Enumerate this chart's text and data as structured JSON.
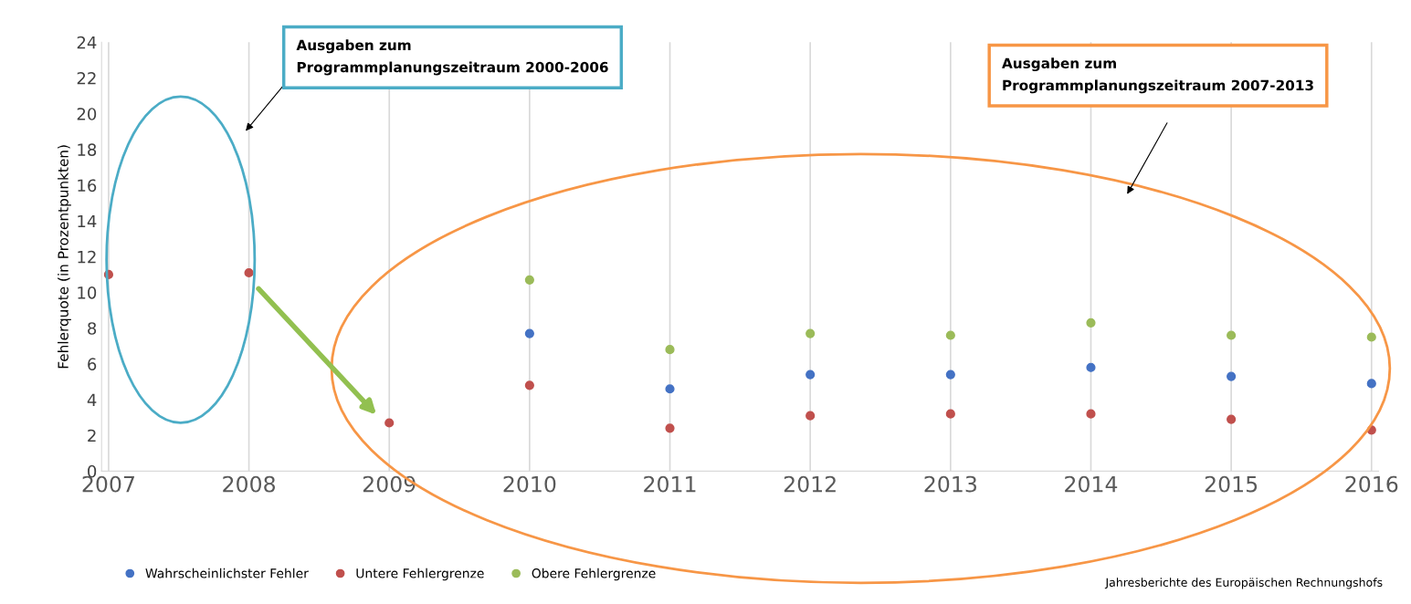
{
  "chart_data": {
    "type": "scatter",
    "ylabel": "Fehlerquote (in Prozentpunkten)",
    "categories": [
      "2007",
      "2008",
      "2009",
      "2010",
      "2011",
      "2012",
      "2013",
      "2014",
      "2015",
      "2016"
    ],
    "series": [
      {
        "name": "Wahrscheinlichster Fehler",
        "color": "#4472c4",
        "values": [
          null,
          null,
          null,
          7.7,
          4.6,
          5.4,
          5.4,
          5.8,
          5.3,
          4.9
        ]
      },
      {
        "name": "Untere Fehlergrenze",
        "color": "#c0504d",
        "values": [
          11.0,
          11.1,
          2.7,
          4.8,
          2.4,
          3.1,
          3.2,
          3.2,
          2.9,
          2.3
        ]
      },
      {
        "name": "Obere Fehlergrenze",
        "color": "#9bbb59",
        "values": [
          null,
          null,
          null,
          10.7,
          6.8,
          7.7,
          7.6,
          8.3,
          7.6,
          7.5
        ]
      }
    ],
    "ylim": [
      0,
      24
    ],
    "yticks": [
      0,
      2,
      4,
      6,
      8,
      10,
      12,
      14,
      16,
      18,
      20,
      22,
      24
    ],
    "grid": "x",
    "legend": "bottom",
    "marker": "circle",
    "annotations": [
      "Ausgaben zum\nProgrammplanungszeitraum 2000-2006",
      "Ausgaben zum\nProgrammplanungszeitraum 2007-2013",
      "Jahresberichte des Europäischen Rechnungshofs"
    ]
  }
}
